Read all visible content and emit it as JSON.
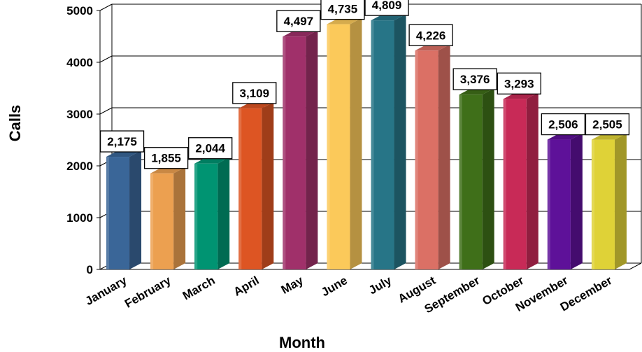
{
  "chart_data": {
    "type": "bar",
    "title": "",
    "xlabel": "Month",
    "ylabel": "Calls",
    "categories": [
      "January",
      "February",
      "March",
      "April",
      "May",
      "June",
      "July",
      "August",
      "September",
      "October",
      "November",
      "December"
    ],
    "values": [
      2175,
      1855,
      2044,
      3109,
      4497,
      4735,
      4809,
      4226,
      3376,
      3293,
      2506,
      2505
    ],
    "data_labels": [
      "2,175",
      "1,855",
      "2,044",
      "3,109",
      "4,497",
      "4,735",
      "4,809",
      "4,226",
      "3,376",
      "3,293",
      "2,506",
      "2,505"
    ],
    "ylim": [
      0,
      5000
    ],
    "yticks": [
      "0",
      "1000",
      "2000",
      "3000",
      "4000",
      "5000"
    ],
    "grid": true,
    "legend": "none",
    "style": "3d",
    "colors": [
      "#3a6698",
      "#eca050",
      "#009472",
      "#dd5523",
      "#a0306a",
      "#fbc95a",
      "#277587",
      "#db7065",
      "#3f6f19",
      "#c82a57",
      "#5e1199",
      "#dfd237"
    ]
  }
}
